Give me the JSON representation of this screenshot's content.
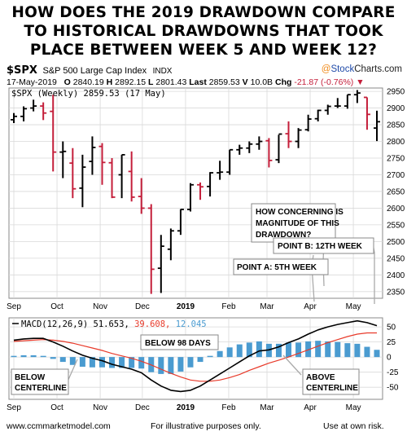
{
  "headline": {
    "line1": "HOW DOES THE 2019 DRAWDOWN COMPARE",
    "line2": "TO HISTORICAL DRAWDOWNS THAT TOOK",
    "line3": "PLACE BETWEEN WEEK 5 AND WEEK 12?"
  },
  "header": {
    "symbol": "$SPX",
    "name": "S&P 500 Large Cap Index",
    "exchange": "INDX",
    "brand_at": "@",
    "brand_stock": "Stock",
    "brand_charts": "Charts.com",
    "date": "17-May-2019",
    "open_label": "O",
    "open": "2840.19",
    "high_label": "H",
    "high": "2892.15",
    "low_label": "L",
    "low": "2801.43",
    "last_label": "Last",
    "last": "2859.53",
    "volume_label": "V",
    "volume": "10.0B",
    "change_label": "Chg",
    "change": "-21.87 (-0.76%)",
    "change_arrow": "▼"
  },
  "price_panel": {
    "legend": "$SPX (Weekly) 2859.53 (17 May)",
    "callout_question": [
      "HOW CONCERNING IS",
      "MAGNITUDE OF THIS",
      "DRAWDOWN?"
    ],
    "callout_b": "POINT B:  12TH WEEK",
    "callout_a": "POINT A:  5TH WEEK"
  },
  "macd_panel": {
    "legend_name": "MACD(12,26,9)",
    "legend_macd": "51.653,",
    "legend_signal": "39.608,",
    "legend_hist": "12.045",
    "callout_98": "BELOW 98 DAYS",
    "callout_below": [
      "BELOW",
      "CENTERLINE"
    ],
    "callout_above": [
      "ABOVE",
      "CENTERLINE"
    ]
  },
  "footer": {
    "left": "www.ccmmarketmodel.com",
    "center": "For illustrative purposes only.",
    "right": "Use at own risk."
  },
  "colors": {
    "up": "#000000",
    "down": "#c41e3a",
    "macd_line": "#000000",
    "signal_line": "#e83a2a",
    "histogram": "#4a9bd0",
    "grid": "#d9d9d9",
    "annotation_line": "#aaaaaa"
  },
  "chart_data": [
    {
      "type": "ohlc",
      "title": "$SPX (Weekly) 2859.53 (17 May)",
      "x_ticks": [
        "Sep",
        "Oct",
        "Nov",
        "Dec",
        "2019",
        "Feb",
        "Mar",
        "Apr",
        "May"
      ],
      "y_ticks": [
        2350,
        2400,
        2450,
        2500,
        2550,
        2600,
        2650,
        2700,
        2750,
        2800,
        2850,
        2900,
        2950
      ],
      "ylim": [
        2330,
        2960
      ],
      "grid": true,
      "series": [
        {
          "o": 2865,
          "h": 2885,
          "l": 2855,
          "c": 2875
        },
        {
          "o": 2875,
          "h": 2905,
          "l": 2860,
          "c": 2898
        },
        {
          "o": 2900,
          "h": 2925,
          "l": 2890,
          "c": 2906
        },
        {
          "o": 2906,
          "h": 2917,
          "l": 2864,
          "c": 2885
        },
        {
          "o": 2890,
          "h": 2940,
          "l": 2710,
          "c": 2768
        },
        {
          "o": 2768,
          "h": 2800,
          "l": 2690,
          "c": 2770
        },
        {
          "o": 2735,
          "h": 2780,
          "l": 2630,
          "c": 2658
        },
        {
          "o": 2660,
          "h": 2760,
          "l": 2603,
          "c": 2723
        },
        {
          "o": 2740,
          "h": 2815,
          "l": 2700,
          "c": 2782
        },
        {
          "o": 2785,
          "h": 2795,
          "l": 2670,
          "c": 2737
        },
        {
          "o": 2736,
          "h": 2750,
          "l": 2630,
          "c": 2633
        },
        {
          "o": 2700,
          "h": 2760,
          "l": 2630,
          "c": 2760
        },
        {
          "o": 2710,
          "h": 2770,
          "l": 2620,
          "c": 2633
        },
        {
          "o": 2635,
          "h": 2690,
          "l": 2583,
          "c": 2600
        },
        {
          "o": 2600,
          "h": 2612,
          "l": 2343,
          "c": 2417
        },
        {
          "o": 2420,
          "h": 2520,
          "l": 2346,
          "c": 2486
        },
        {
          "o": 2477,
          "h": 2539,
          "l": 2444,
          "c": 2532
        },
        {
          "o": 2532,
          "h": 2597,
          "l": 2520,
          "c": 2596
        },
        {
          "o": 2596,
          "h": 2675,
          "l": 2590,
          "c": 2670
        },
        {
          "o": 2670,
          "h": 2677,
          "l": 2625,
          "c": 2664
        },
        {
          "o": 2665,
          "h": 2708,
          "l": 2635,
          "c": 2706
        },
        {
          "o": 2706,
          "h": 2742,
          "l": 2685,
          "c": 2708
        },
        {
          "o": 2708,
          "h": 2775,
          "l": 2700,
          "c": 2775
        },
        {
          "o": 2775,
          "h": 2790,
          "l": 2760,
          "c": 2780
        },
        {
          "o": 2780,
          "h": 2800,
          "l": 2765,
          "c": 2792
        },
        {
          "o": 2792,
          "h": 2815,
          "l": 2775,
          "c": 2800
        },
        {
          "o": 2802,
          "h": 2810,
          "l": 2722,
          "c": 2743
        },
        {
          "o": 2745,
          "h": 2820,
          "l": 2735,
          "c": 2822
        },
        {
          "o": 2823,
          "h": 2860,
          "l": 2780,
          "c": 2800
        },
        {
          "o": 2800,
          "h": 2840,
          "l": 2780,
          "c": 2834
        },
        {
          "o": 2835,
          "h": 2880,
          "l": 2830,
          "c": 2867
        },
        {
          "o": 2868,
          "h": 2895,
          "l": 2860,
          "c": 2893
        },
        {
          "o": 2893,
          "h": 2910,
          "l": 2880,
          "c": 2905
        },
        {
          "o": 2906,
          "h": 2930,
          "l": 2900,
          "c": 2906
        },
        {
          "o": 2906,
          "h": 2940,
          "l": 2898,
          "c": 2940
        },
        {
          "o": 2940,
          "h": 2954,
          "l": 2915,
          "c": 2945
        },
        {
          "o": 2932,
          "h": 2932,
          "l": 2835,
          "c": 2881
        },
        {
          "o": 2840,
          "h": 2892,
          "l": 2801,
          "c": 2859
        }
      ]
    },
    {
      "type": "bar+line",
      "title": "MACD(12,26,9) 51.653, 39.608, 12.045",
      "x_ticks": [
        "Sep",
        "Oct",
        "Nov",
        "Dec",
        "2019",
        "Feb",
        "Mar",
        "Apr",
        "May"
      ],
      "y_ticks": [
        -50,
        -25,
        0,
        25,
        50
      ],
      "ylim": [
        -70,
        65
      ],
      "series": [
        {
          "name": "MACD",
          "values": [
            28,
            30,
            31,
            31,
            25,
            18,
            10,
            3,
            -2,
            -6,
            -12,
            -16,
            -20,
            -26,
            -38,
            -48,
            -55,
            -57,
            -55,
            -48,
            -38,
            -28,
            -18,
            -8,
            2,
            10,
            12,
            17,
            24,
            30,
            38,
            45,
            50,
            54,
            57,
            60,
            57,
            52
          ]
        },
        {
          "name": "Signal",
          "values": [
            26,
            27,
            28,
            29,
            28,
            26,
            23,
            19,
            15,
            11,
            6,
            2,
            -2,
            -7,
            -13,
            -20,
            -27,
            -33,
            -38,
            -40,
            -40,
            -38,
            -34,
            -29,
            -22,
            -16,
            -10,
            -5,
            0,
            6,
            12,
            18,
            24,
            29,
            34,
            38,
            40,
            40
          ]
        },
        {
          "name": "Histogram",
          "values": [
            2,
            3,
            3,
            2,
            -3,
            -8,
            -13,
            -16,
            -17,
            -17,
            -18,
            -18,
            -18,
            -19,
            -25,
            -28,
            -28,
            -24,
            -17,
            -8,
            2,
            10,
            16,
            21,
            24,
            26,
            22,
            22,
            24,
            24,
            26,
            27,
            26,
            25,
            23,
            22,
            17,
            12
          ]
        }
      ]
    }
  ]
}
